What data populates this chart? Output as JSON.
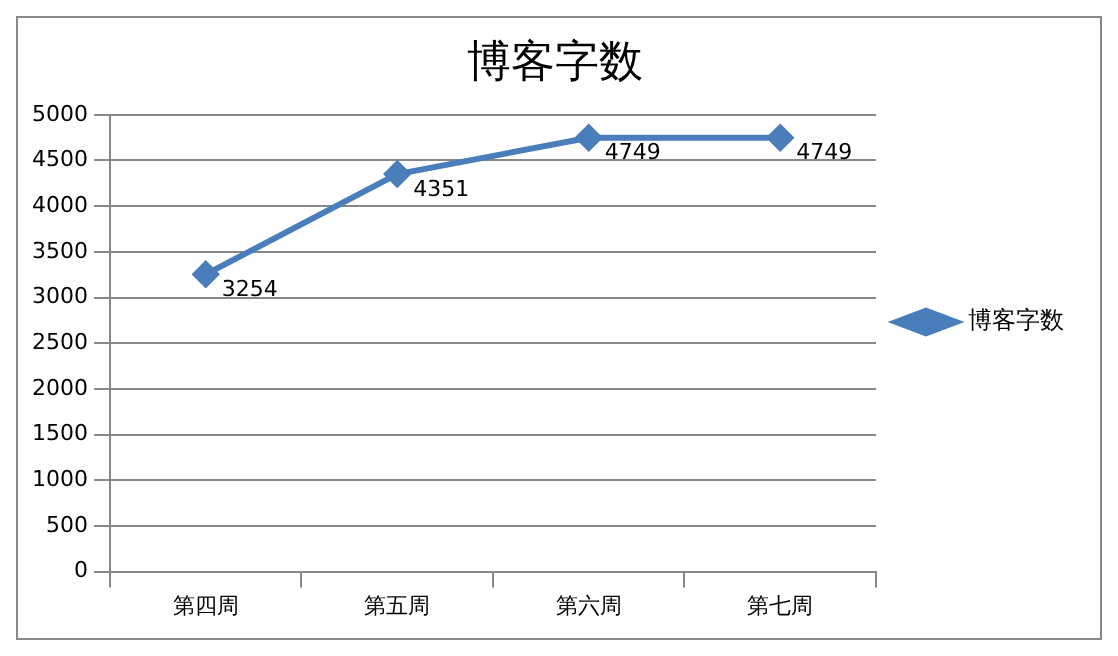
{
  "chart_data": {
    "type": "line",
    "title": "博客字数",
    "categories": [
      "第四周",
      "第五周",
      "第六周",
      "第七周"
    ],
    "series": [
      {
        "name": "博客字数",
        "color": "#4a7ebb",
        "values": [
          3254,
          4351,
          4749,
          4749
        ]
      }
    ],
    "ylim": [
      0,
      5000
    ],
    "yticks": [
      0,
      500,
      1000,
      1500,
      2000,
      2500,
      3000,
      3500,
      4000,
      4500,
      5000
    ],
    "grid": "y",
    "legend": "right",
    "marker": "diamond",
    "line_style": "solid",
    "data_labels": true
  }
}
